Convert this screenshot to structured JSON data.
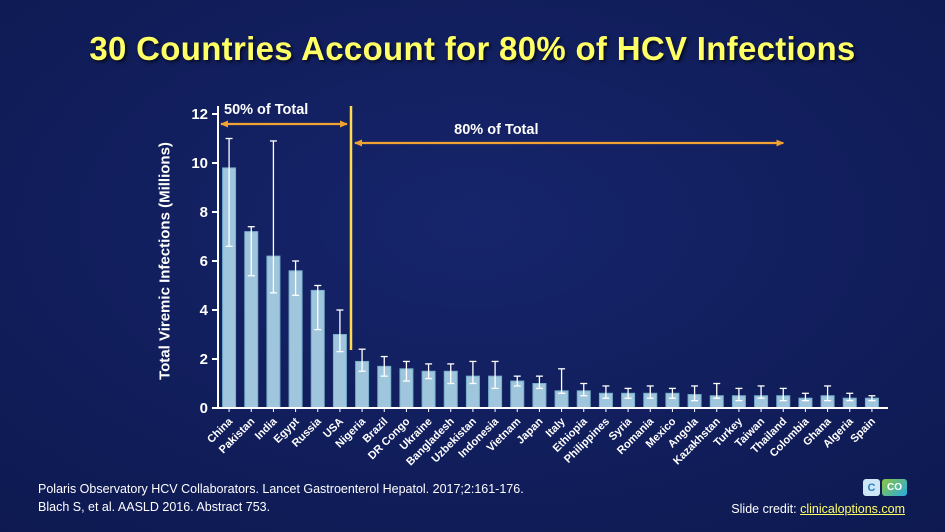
{
  "slide": {
    "title": "30 Countries Account for 80% of HCV Infections",
    "footer_line1": "Polaris Observatory HCV Collaborators. Lancet Gastroenterol Hepatol. 2017;2:161-176.",
    "footer_line2": "Blach S, et al. AASLD 2016. Abstract 753.",
    "credit_label": "Slide credit: ",
    "credit_link": "clinicaloptions.com",
    "logo": {
      "left_text": "C",
      "right_text": "CO"
    }
  },
  "chart_data": {
    "type": "bar",
    "title": "30 Countries Account for 80% of HCV Infections",
    "xlabel": "",
    "ylabel": "Total Viremic Infections (Millions)",
    "ylim": [
      0,
      12
    ],
    "yticks": [
      0,
      2,
      4,
      6,
      8,
      10,
      12
    ],
    "grid": false,
    "legend": "none",
    "bar_color": "#9FC6DC",
    "bar_edge_color": "#77AECB",
    "error_color": "#FFFFFF",
    "axis_color": "#FFFFFF",
    "categories": [
      "China",
      "Pakistan",
      "India",
      "Egypt",
      "Russia",
      "USA",
      "Nigeria",
      "Brazil",
      "DR Congo",
      "Ukraine",
      "Bangladesh",
      "Uzbekistan",
      "Indonesia",
      "Vietnam",
      "Japan",
      "Italy",
      "Ethiopia",
      "Philippines",
      "Syria",
      "Romania",
      "Mexico",
      "Angola",
      "Kazakhstan",
      "Turkey",
      "Taiwan",
      "Thailand",
      "Colombia",
      "Ghana",
      "Algeria",
      "Spain"
    ],
    "values": [
      9.8,
      7.2,
      6.2,
      5.6,
      4.8,
      3.0,
      1.9,
      1.7,
      1.6,
      1.5,
      1.5,
      1.3,
      1.3,
      1.1,
      1.0,
      0.7,
      0.7,
      0.6,
      0.6,
      0.6,
      0.6,
      0.55,
      0.5,
      0.5,
      0.5,
      0.5,
      0.4,
      0.5,
      0.4,
      0.4
    ],
    "error_low": [
      6.6,
      5.4,
      4.7,
      4.6,
      3.2,
      2.3,
      1.5,
      1.3,
      1.1,
      1.2,
      1.0,
      1.0,
      0.8,
      0.9,
      0.8,
      0.6,
      0.5,
      0.4,
      0.4,
      0.4,
      0.4,
      0.3,
      0.4,
      0.3,
      0.4,
      0.3,
      0.3,
      0.3,
      0.3,
      0.3
    ],
    "error_high": [
      11.0,
      7.4,
      10.9,
      6.0,
      5.0,
      4.0,
      2.4,
      2.1,
      1.9,
      1.8,
      1.8,
      1.9,
      1.9,
      1.3,
      1.3,
      1.6,
      1.0,
      0.9,
      0.8,
      0.9,
      0.8,
      0.9,
      1.0,
      0.8,
      0.9,
      0.8,
      0.6,
      0.9,
      0.6,
      0.5
    ],
    "annotations": {
      "arrow_color": "#F0A232",
      "divider_color": "#FFDB4D",
      "divider_after_index": 5,
      "fifty": {
        "label": "50% of Total",
        "from_index": 0,
        "to_index": 5
      },
      "eighty": {
        "label": "80% of Total",
        "from_index": 6,
        "to_index": 25
      }
    }
  }
}
